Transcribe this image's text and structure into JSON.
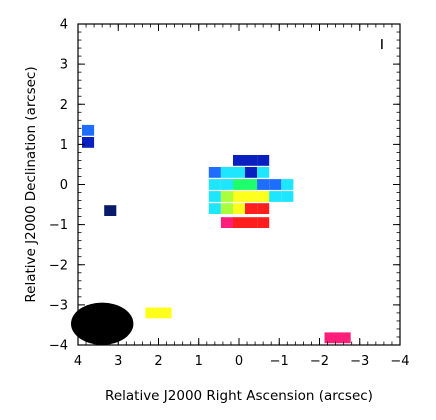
{
  "chart_data": {
    "type": "heatmap",
    "title": "",
    "xlabel": "Relative J2000 Right Ascension (arcsec)",
    "ylabel": "Relative J2000 Declination (arcsec)",
    "xlim": [
      4,
      -4
    ],
    "ylim": [
      -4,
      4
    ],
    "x_ticks": [
      4,
      3,
      2,
      1,
      0,
      -1,
      -2,
      -3,
      -4
    ],
    "x_tick_labels": [
      "4",
      "3",
      "2",
      "1",
      "0",
      "−1",
      "−2",
      "−3",
      "−4"
    ],
    "y_ticks": [
      -4,
      -3,
      -2,
      -1,
      0,
      1,
      2,
      3,
      4
    ],
    "y_tick_labels": [
      "−4",
      "−3",
      "−2",
      "−1",
      "0",
      "1",
      "2",
      "3",
      "4"
    ],
    "pixel_size_arcsec": 0.3,
    "pixels": [
      {
        "x": 3.75,
        "y": 1.35,
        "color": "#1e6dff"
      },
      {
        "x": 3.75,
        "y": 1.05,
        "color": "#0a1fbf"
      },
      {
        "x": 3.2,
        "y": -0.65,
        "color": "#0a1a6b"
      },
      {
        "x": 0.6,
        "y": 0.3,
        "color": "#1e6dff"
      },
      {
        "x": 0.6,
        "y": 0.0,
        "color": "#1ee6ff"
      },
      {
        "x": 0.6,
        "y": -0.3,
        "color": "#1ee6ff"
      },
      {
        "x": 0.6,
        "y": -0.6,
        "color": "#1ee6ff"
      },
      {
        "x": 0.3,
        "y": 0.3,
        "color": "#1ee6ff"
      },
      {
        "x": 0.3,
        "y": 0.0,
        "color": "#1ee6ff"
      },
      {
        "x": 0.3,
        "y": -0.3,
        "color": "#aaff3c"
      },
      {
        "x": 0.3,
        "y": -0.6,
        "color": "#aaff3c"
      },
      {
        "x": 0.3,
        "y": -0.95,
        "color": "#ff1f7a"
      },
      {
        "x": 0.0,
        "y": 0.6,
        "color": "#0a1fbf"
      },
      {
        "x": 0.0,
        "y": 0.3,
        "color": "#1ee6ff"
      },
      {
        "x": 0.0,
        "y": 0.0,
        "color": "#1eff6c"
      },
      {
        "x": 0.0,
        "y": -0.3,
        "color": "#ffff1e"
      },
      {
        "x": 0.0,
        "y": -0.6,
        "color": "#ffff1e"
      },
      {
        "x": 0.0,
        "y": -0.95,
        "color": "#ff1e1e"
      },
      {
        "x": -0.3,
        "y": 0.6,
        "color": "#0a1fbf"
      },
      {
        "x": -0.3,
        "y": 0.3,
        "color": "#0a1fbf"
      },
      {
        "x": -0.3,
        "y": 0.0,
        "color": "#1eff6c"
      },
      {
        "x": -0.3,
        "y": -0.3,
        "color": "#ffff1e"
      },
      {
        "x": -0.3,
        "y": -0.6,
        "color": "#ff1e1e"
      },
      {
        "x": -0.3,
        "y": -0.95,
        "color": "#ff1e1e"
      },
      {
        "x": -0.6,
        "y": 0.6,
        "color": "#0a1fbf"
      },
      {
        "x": -0.6,
        "y": 0.3,
        "color": "#1ee6ff"
      },
      {
        "x": -0.6,
        "y": 0.0,
        "color": "#1e6dff"
      },
      {
        "x": -0.6,
        "y": -0.3,
        "color": "#ffff1e"
      },
      {
        "x": -0.6,
        "y": -0.6,
        "color": "#ff1e1e"
      },
      {
        "x": -0.6,
        "y": -0.95,
        "color": "#ff1e1e"
      },
      {
        "x": -0.9,
        "y": 0.0,
        "color": "#1e6dff"
      },
      {
        "x": -0.9,
        "y": -0.3,
        "color": "#1ee6ff"
      },
      {
        "x": -1.2,
        "y": 0.0,
        "color": "#1ee6ff"
      },
      {
        "x": -1.2,
        "y": -0.3,
        "color": "#1ee6ff"
      },
      {
        "x": 2.0,
        "y": -3.2,
        "color": "#ffff1e",
        "width": 0.65
      },
      {
        "x": -2.45,
        "y": -3.82,
        "color": "#ff1f7a",
        "width": 0.65
      }
    ],
    "beam": {
      "x": 3.4,
      "y": -3.47,
      "major_arcsec": 1.55,
      "minor_arcsec": 1.05,
      "color": "#000000"
    },
    "scale_mark": {
      "x": -3.55,
      "y": 3.5
    }
  }
}
